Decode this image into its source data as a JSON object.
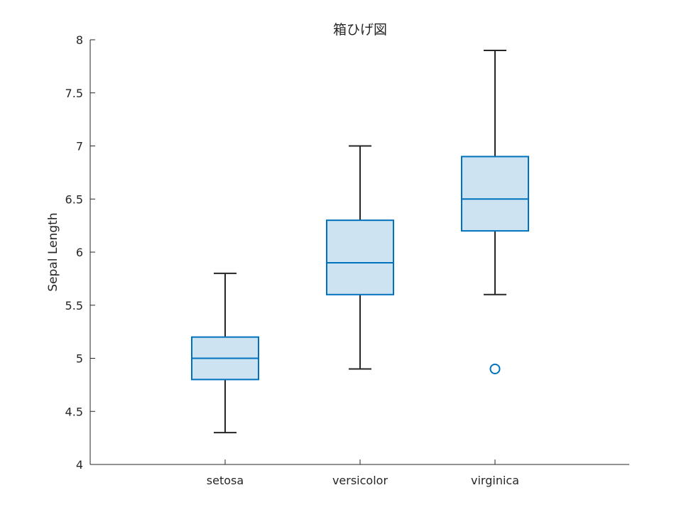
{
  "chart_data": {
    "type": "box",
    "title": "箱ひげ図",
    "xlabel": "",
    "ylabel": "Sepal Length",
    "ylim": [
      4,
      8
    ],
    "yticks": [
      4,
      4.5,
      5,
      5.5,
      6,
      6.5,
      7,
      7.5,
      8
    ],
    "ytick_labels": [
      "4",
      "4.5",
      "5",
      "5.5",
      "6",
      "6.5",
      "7",
      "7.5",
      "8"
    ],
    "categories": [
      "setosa",
      "versicolor",
      "virginica"
    ],
    "boxes": [
      {
        "category": "setosa",
        "whisker_low": 4.3,
        "q1": 4.8,
        "median": 5.0,
        "q3": 5.2,
        "whisker_high": 5.8,
        "outliers": []
      },
      {
        "category": "versicolor",
        "whisker_low": 4.9,
        "q1": 5.6,
        "median": 5.9,
        "q3": 6.3,
        "whisker_high": 7.0,
        "outliers": []
      },
      {
        "category": "virginica",
        "whisker_low": 5.6,
        "q1": 6.2,
        "median": 6.5,
        "q3": 6.9,
        "whisker_high": 7.9,
        "outliers": [
          4.9
        ]
      }
    ],
    "grid": false,
    "legend": "none",
    "colors": {
      "box_edge": "#0072bd",
      "box_fill": "#cde3f2",
      "whisker": "#262626",
      "axis": "#262626"
    }
  }
}
